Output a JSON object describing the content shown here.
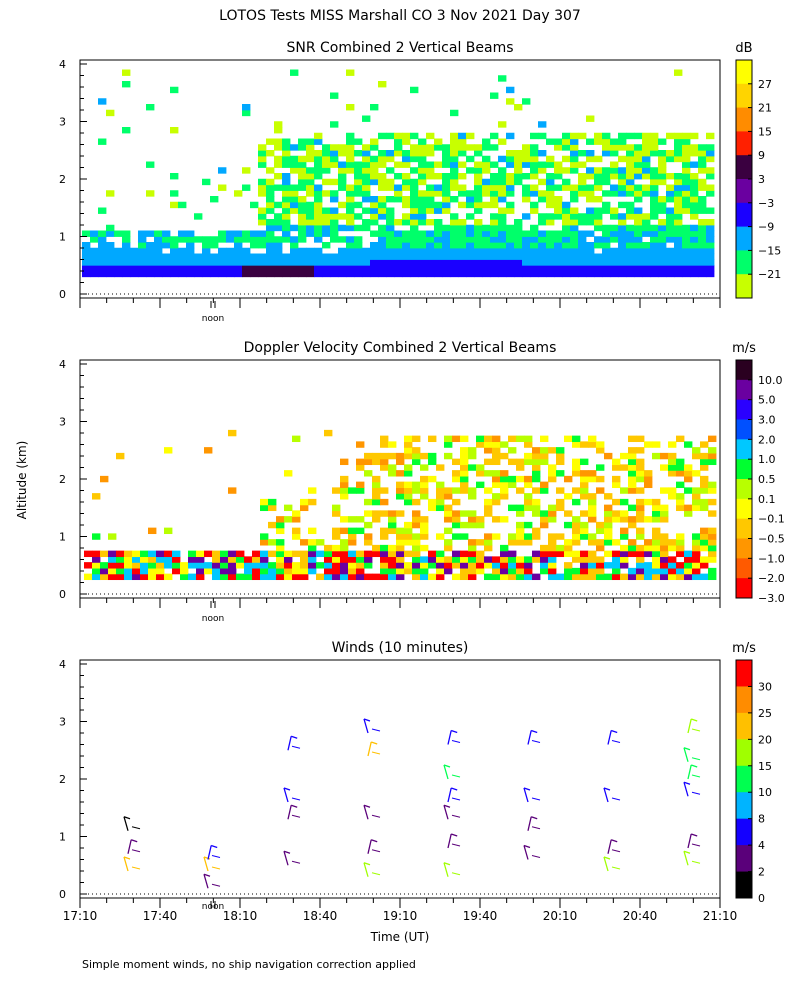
{
  "page": {
    "title": "LOTOS Tests MISS Marshall CO   3 Nov 2021 Day 307",
    "footnote": "Simple moment winds, no ship navigation correction applied",
    "y_axis_label": "Altitude (km)",
    "x_axis_label": "Time (UT)",
    "noon_label": "noon"
  },
  "chart_data": [
    {
      "type": "heatmap",
      "title": "SNR Combined 2 Vertical Beams",
      "colorbar_unit": "dB",
      "colorbar_ticks": [
        "27",
        "21",
        "15",
        "9",
        "3",
        "−3",
        "−9",
        "−15",
        "−21"
      ],
      "colorbar_colors": [
        "#ffff00",
        "#ffd400",
        "#ff8c00",
        "#ff2000",
        "#3a0040",
        "#6a00a0",
        "#1a00ff",
        "#00a8ff",
        "#00ff6a",
        "#c8ff00"
      ],
      "yticks": [
        "0",
        "1",
        "2",
        "3",
        "4"
      ],
      "ylim": [
        0,
        4
      ]
    },
    {
      "type": "heatmap",
      "title": "Doppler Velocity Combined 2 Vertical Beams",
      "colorbar_unit": "m/s",
      "colorbar_ticks": [
        "10.0",
        "5.0",
        "3.0",
        "2.0",
        "1.0",
        "0.5",
        "0.1",
        "−0.1",
        "−0.5",
        "−1.0",
        "−2.0",
        "−3.0"
      ],
      "colorbar_colors": [
        "#2a0020",
        "#6a00a0",
        "#2a00ff",
        "#0050ff",
        "#00c8ff",
        "#00ff30",
        "#b8ff00",
        "#ffff00",
        "#ffc800",
        "#ff9600",
        "#ff5a00",
        "#ff0000"
      ],
      "yticks": [
        "0",
        "1",
        "2",
        "3",
        "4"
      ],
      "ylim": [
        0,
        4
      ]
    },
    {
      "type": "scatter",
      "title": "Winds (10 minutes)",
      "colorbar_unit": "m/s",
      "colorbar_ticks": [
        "30",
        "25",
        "20",
        "15",
        "10",
        "8",
        "4",
        "2",
        "0"
      ],
      "colorbar_colors": [
        "#ff0000",
        "#ff8c00",
        "#ffc000",
        "#a0ff00",
        "#00ff50",
        "#00b4ff",
        "#1400ff",
        "#5a007a",
        "#000000"
      ],
      "yticks": [
        "0",
        "1",
        "2",
        "3",
        "4"
      ],
      "ylim": [
        0,
        4
      ],
      "xticks": [
        "17:10",
        "17:40",
        "18:10",
        "18:40",
        "19:10",
        "19:40",
        "20:10",
        "20:40",
        "21:10"
      ],
      "profiles": [
        {
          "time": "17:28",
          "barbs": [
            {
              "alt": 0.4,
              "speed": 20
            },
            {
              "alt": 0.7,
              "speed": 2
            },
            {
              "alt": 1.1,
              "speed": 1
            }
          ]
        },
        {
          "time": "17:58",
          "barbs": [
            {
              "alt": 0.4,
              "speed": 22
            },
            {
              "alt": 0.6,
              "speed": 4
            },
            {
              "alt": 0.1,
              "speed": 3
            }
          ]
        },
        {
          "time": "18:28",
          "barbs": [
            {
              "alt": 0.5,
              "speed": 3
            },
            {
              "alt": 1.3,
              "speed": 2
            },
            {
              "alt": 1.6,
              "speed": 4
            },
            {
              "alt": 2.5,
              "speed": 4
            }
          ]
        },
        {
          "time": "18:58",
          "barbs": [
            {
              "alt": 0.3,
              "speed": 18
            },
            {
              "alt": 0.7,
              "speed": 2
            },
            {
              "alt": 1.3,
              "speed": 3
            },
            {
              "alt": 2.4,
              "speed": 22
            },
            {
              "alt": 2.8,
              "speed": 4
            }
          ]
        },
        {
          "time": "19:28",
          "barbs": [
            {
              "alt": 0.3,
              "speed": 16
            },
            {
              "alt": 0.8,
              "speed": 3
            },
            {
              "alt": 1.3,
              "speed": 2
            },
            {
              "alt": 1.6,
              "speed": 4
            },
            {
              "alt": 2.0,
              "speed": 10
            },
            {
              "alt": 2.6,
              "speed": 4
            }
          ]
        },
        {
          "time": "19:58",
          "barbs": [
            {
              "alt": 0.6,
              "speed": 3
            },
            {
              "alt": 1.1,
              "speed": 2
            },
            {
              "alt": 1.6,
              "speed": 4
            },
            {
              "alt": 2.6,
              "speed": 4
            }
          ]
        },
        {
          "time": "20:28",
          "barbs": [
            {
              "alt": 0.4,
              "speed": 16
            },
            {
              "alt": 0.7,
              "speed": 3
            },
            {
              "alt": 1.6,
              "speed": 4
            },
            {
              "alt": 2.6,
              "speed": 4
            }
          ]
        },
        {
          "time": "20:58",
          "barbs": [
            {
              "alt": 0.5,
              "speed": 16
            },
            {
              "alt": 0.8,
              "speed": 3
            },
            {
              "alt": 1.7,
              "speed": 4
            },
            {
              "alt": 2.0,
              "speed": 10
            },
            {
              "alt": 2.3,
              "speed": 14
            },
            {
              "alt": 2.8,
              "speed": 16
            }
          ]
        }
      ]
    }
  ]
}
